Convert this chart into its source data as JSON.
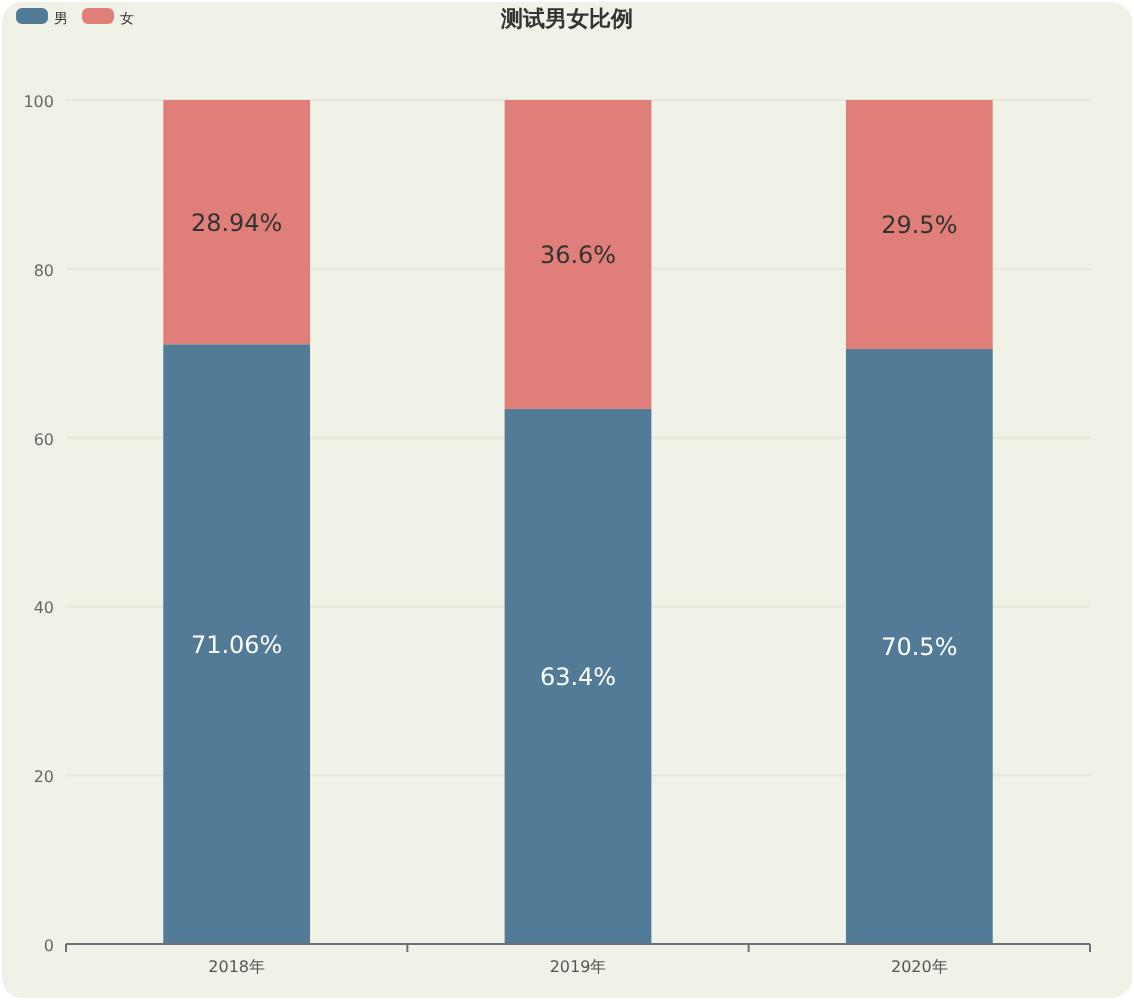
{
  "chart_data": {
    "type": "bar",
    "title": "测试男女比例",
    "categories": [
      "2018年",
      "2019年",
      "2020年"
    ],
    "stacked": true,
    "series": [
      {
        "name": "男",
        "color": "#527b97",
        "values": [
          71.06,
          63.4,
          70.5
        ],
        "value_labels": [
          "71.06%",
          "63.4%",
          "70.5%"
        ]
      },
      {
        "name": "女",
        "color": "#e07f79",
        "values": [
          28.94,
          36.6,
          29.5
        ],
        "value_labels": [
          "28.94%",
          "36.6%",
          "29.5%"
        ]
      }
    ],
    "ylim": [
      0,
      100
    ],
    "yticks": [
      0,
      20,
      40,
      60,
      80,
      100
    ],
    "grid": "y",
    "legend": "top left"
  }
}
